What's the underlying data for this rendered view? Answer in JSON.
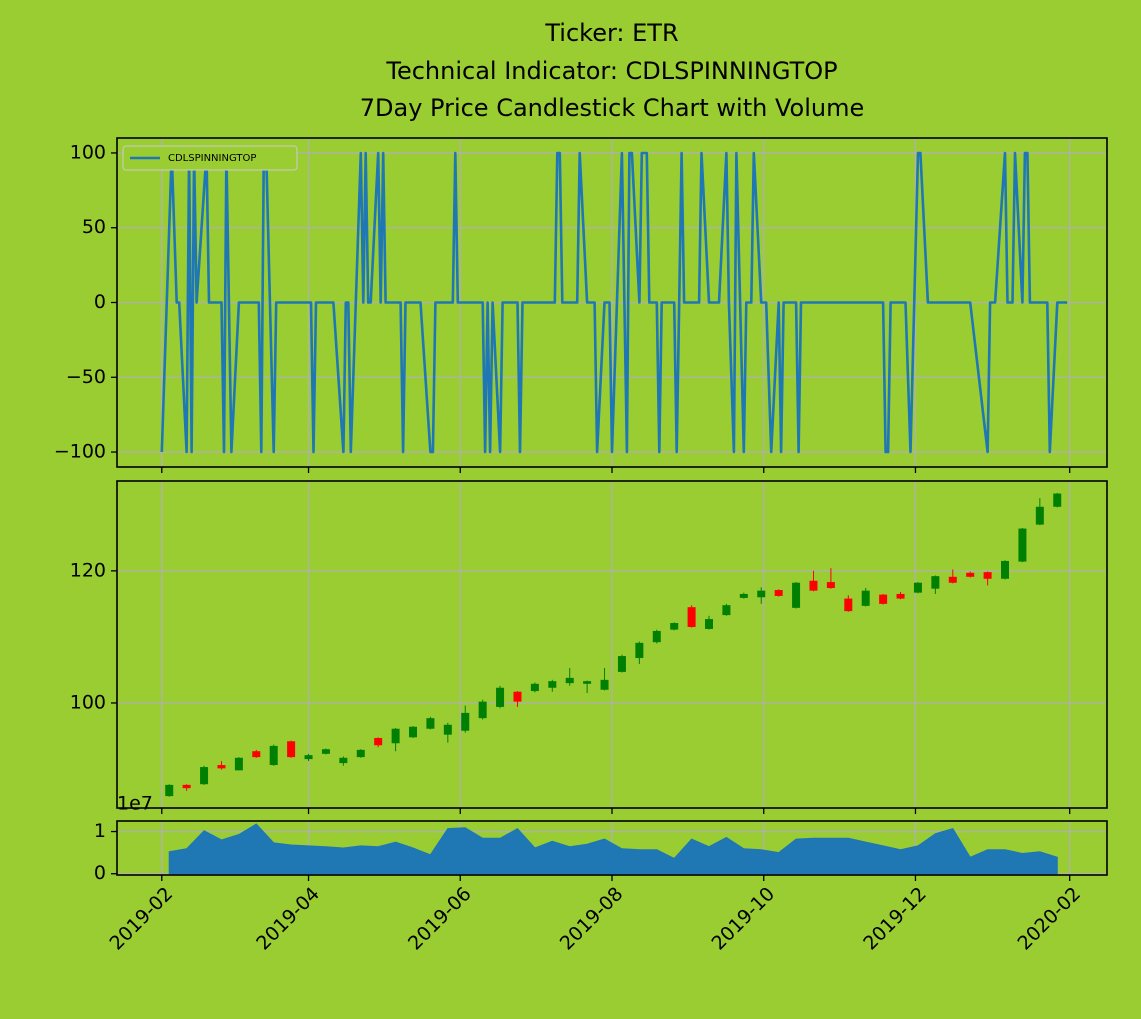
{
  "chart_data": [
    {
      "type": "line",
      "title": [
        "Ticker: ETR",
        "Technical Indicator: CDLSPINNINGTOP",
        "7Day Price Candlestick Chart with Volume"
      ],
      "legend": "upper left",
      "ylim": [
        -110,
        110
      ],
      "yticks": [
        {
          "value": -100,
          "label": "−100"
        },
        {
          "value": -50,
          "label": "−50"
        },
        0,
        50,
        100
      ],
      "grid": true,
      "x": [
        "2019-02-01",
        "2019-02-05",
        "2019-02-07",
        "2019-02-08",
        "2019-02-11",
        "2019-02-12",
        "2019-02-13",
        "2019-02-14",
        "2019-02-15",
        "2019-02-19",
        "2019-02-20",
        "2019-02-25",
        "2019-02-26",
        "2019-02-27",
        "2019-03-01",
        "2019-03-04",
        "2019-03-12",
        "2019-03-13",
        "2019-03-14",
        "2019-03-15",
        "2019-03-18",
        "2019-03-19",
        "2019-04-02",
        "2019-04-03",
        "2019-04-04",
        "2019-04-11",
        "2019-04-15",
        "2019-04-16",
        "2019-04-17",
        "2019-04-18",
        "2019-04-22",
        "2019-04-23",
        "2019-04-24",
        "2019-04-25",
        "2019-04-26",
        "2019-04-29",
        "2019-04-30",
        "2019-05-01",
        "2019-05-02",
        "2019-05-08",
        "2019-05-09",
        "2019-05-10",
        "2019-05-16",
        "2019-05-20",
        "2019-05-21",
        "2019-05-22",
        "2019-05-29",
        "2019-05-30",
        "2019-05-31",
        "2019-06-10",
        "2019-06-11",
        "2019-06-12",
        "2019-06-13",
        "2019-06-14",
        "2019-06-17",
        "2019-06-18",
        "2019-06-24",
        "2019-06-25",
        "2019-06-26",
        "2019-07-09",
        "2019-07-10",
        "2019-07-11",
        "2019-07-12",
        "2019-07-18",
        "2019-07-19",
        "2019-07-22",
        "2019-07-25",
        "2019-07-26",
        "2019-07-29",
        "2019-07-31",
        "2019-08-01",
        "2019-08-05",
        "2019-08-06",
        "2019-08-07",
        "2019-08-08",
        "2019-08-09",
        "2019-08-12",
        "2019-08-13",
        "2019-08-15",
        "2019-08-16",
        "2019-08-19",
        "2019-08-20",
        "2019-08-21",
        "2019-08-26",
        "2019-08-27",
        "2019-08-28",
        "2019-08-29",
        "2019-08-30",
        "2019-09-05",
        "2019-09-06",
        "2019-09-09",
        "2019-09-13",
        "2019-09-16",
        "2019-09-17",
        "2019-09-19",
        "2019-09-20",
        "2019-09-23",
        "2019-09-24",
        "2019-09-26",
        "2019-09-27",
        "2019-09-30",
        "2019-10-02",
        "2019-10-04",
        "2019-10-07",
        "2019-10-08",
        "2019-10-09",
        "2019-10-14",
        "2019-10-15",
        "2019-10-16",
        "2019-11-18",
        "2019-11-19",
        "2019-11-20",
        "2019-11-21",
        "2019-11-27",
        "2019-11-29",
        "2019-12-02",
        "2019-12-03",
        "2019-12-06",
        "2019-12-23",
        "2019-12-30",
        "2019-12-31",
        "2020-01-02",
        "2020-01-06",
        "2020-01-07",
        "2020-01-09",
        "2020-01-10",
        "2020-01-13",
        "2020-01-14",
        "2020-01-15",
        "2020-01-16",
        "2020-01-23",
        "2020-01-24",
        "2020-01-27",
        "2020-01-31"
      ],
      "series": [
        {
          "name": "CDLSPINNINGTOP",
          "color": "#1f77b4",
          "values": [
            -100,
            100,
            0,
            0,
            -100,
            100,
            -100,
            100,
            0,
            100,
            0,
            0,
            -100,
            100,
            -100,
            0,
            0,
            -100,
            100,
            100,
            -100,
            0,
            0,
            -100,
            0,
            0,
            -100,
            0,
            0,
            -100,
            100,
            0,
            100,
            0,
            0,
            100,
            0,
            100,
            0,
            0,
            -100,
            0,
            0,
            -100,
            -100,
            0,
            0,
            100,
            0,
            0,
            -100,
            0,
            -100,
            0,
            -100,
            0,
            0,
            -100,
            0,
            0,
            100,
            100,
            0,
            0,
            100,
            0,
            0,
            -100,
            0,
            0,
            -100,
            100,
            0,
            -100,
            100,
            100,
            0,
            100,
            100,
            0,
            0,
            -100,
            0,
            0,
            -100,
            0,
            100,
            0,
            0,
            100,
            0,
            0,
            100,
            0,
            -100,
            100,
            -100,
            0,
            0,
            100,
            0,
            0,
            -100,
            0,
            -100,
            0,
            0,
            -100,
            0,
            0,
            -100,
            -100,
            0,
            0,
            -100,
            100,
            100,
            0,
            0,
            -100,
            0,
            0,
            100,
            0,
            0,
            100,
            0,
            100,
            100,
            0,
            0,
            -100,
            0,
            0
          ]
        }
      ]
    },
    {
      "type": "candlestick",
      "ylim": [
        84.1,
        133.6
      ],
      "yticks": [
        100,
        120
      ],
      "grid": true,
      "up_color": "#008000",
      "down_color": "#ff0000",
      "x": [
        "2019-02-04",
        "2019-02-11",
        "2019-02-18",
        "2019-02-25",
        "2019-03-04",
        "2019-03-11",
        "2019-03-18",
        "2019-03-25",
        "2019-04-01",
        "2019-04-08",
        "2019-04-15",
        "2019-04-22",
        "2019-04-29",
        "2019-05-06",
        "2019-05-13",
        "2019-05-20",
        "2019-05-27",
        "2019-06-03",
        "2019-06-10",
        "2019-06-17",
        "2019-06-24",
        "2019-07-01",
        "2019-07-08",
        "2019-07-15",
        "2019-07-22",
        "2019-07-29",
        "2019-08-05",
        "2019-08-12",
        "2019-08-19",
        "2019-08-26",
        "2019-09-02",
        "2019-09-09",
        "2019-09-16",
        "2019-09-23",
        "2019-09-30",
        "2019-10-07",
        "2019-10-14",
        "2019-10-21",
        "2019-10-28",
        "2019-11-04",
        "2019-11-11",
        "2019-11-18",
        "2019-11-25",
        "2019-12-02",
        "2019-12-09",
        "2019-12-16",
        "2019-12-23",
        "2019-12-30",
        "2020-01-06",
        "2020-01-13",
        "2020-01-20",
        "2020-01-27"
      ],
      "open": [
        85.9,
        87.6,
        87.7,
        90.6,
        89.8,
        92.7,
        90.6,
        94.2,
        91.5,
        92.3,
        90.9,
        91.8,
        94.7,
        93.9,
        94.8,
        96.1,
        95.2,
        95.8,
        97.7,
        99.4,
        101.7,
        101.8,
        102.3,
        103.0,
        102.9,
        102.0,
        104.7,
        106.8,
        109.2,
        111.1,
        114.5,
        111.2,
        113.3,
        115.9,
        116.0,
        117.1,
        114.4,
        118.5,
        118.3,
        115.8,
        114.7,
        116.4,
        116.5,
        116.7,
        117.3,
        119.1,
        119.7,
        119.8,
        118.8,
        121.4,
        127.0,
        129.7
      ],
      "high": [
        87.7,
        87.7,
        90.5,
        91.2,
        91.8,
        92.9,
        93.7,
        94.3,
        92.3,
        93.1,
        91.9,
        93.0,
        94.8,
        96.2,
        96.5,
        97.9,
        97.0,
        99.6,
        100.5,
        102.6,
        101.8,
        103.1,
        103.5,
        105.3,
        103.4,
        105.3,
        107.3,
        109.3,
        111.1,
        112.2,
        114.8,
        113.2,
        115.0,
        116.7,
        117.5,
        117.2,
        118.3,
        120.0,
        120.4,
        116.3,
        117.4,
        116.5,
        116.8,
        118.3,
        119.3,
        120.2,
        119.9,
        119.9,
        121.6,
        126.5,
        131.0,
        131.8
      ],
      "low": [
        85.8,
        86.7,
        87.6,
        89.9,
        89.8,
        91.7,
        90.5,
        91.7,
        91.2,
        92.2,
        90.5,
        91.7,
        93.3,
        92.7,
        94.7,
        96.0,
        94.0,
        95.5,
        97.5,
        99.2,
        99.4,
        101.6,
        101.7,
        102.6,
        101.5,
        101.9,
        104.6,
        105.9,
        109.0,
        111.0,
        111.4,
        111.1,
        113.2,
        115.8,
        115.0,
        116.1,
        114.3,
        116.9,
        117.3,
        113.8,
        114.6,
        114.9,
        115.7,
        116.6,
        116.5,
        118.1,
        119.0,
        117.8,
        118.7,
        121.3,
        126.9,
        129.6
      ],
      "close": [
        87.6,
        87.1,
        90.3,
        90.1,
        91.7,
        91.8,
        93.5,
        91.8,
        92.1,
        93.0,
        91.7,
        92.9,
        93.6,
        96.1,
        96.4,
        97.7,
        96.7,
        98.5,
        100.2,
        102.3,
        100.2,
        102.9,
        103.3,
        103.8,
        103.3,
        103.5,
        107.1,
        109.1,
        110.9,
        112.1,
        111.5,
        112.7,
        114.8,
        116.5,
        117.0,
        116.2,
        118.2,
        117.0,
        117.4,
        113.9,
        117.0,
        115.0,
        115.8,
        118.2,
        119.2,
        118.2,
        119.1,
        118.8,
        121.5,
        126.4,
        129.7,
        131.7
      ]
    },
    {
      "type": "area",
      "yaxis_offset": "1e7",
      "ylim": [
        -0.03,
        1.25
      ],
      "yticks": [
        0,
        1
      ],
      "grid": true,
      "color": "#1f77b4",
      "xlim": [
        "2019-01-14",
        "2020-02-16"
      ],
      "xticks": [
        {
          "value": "2019-02-01",
          "label": "2019-02"
        },
        {
          "value": "2019-04-01",
          "label": "2019-04"
        },
        {
          "value": "2019-06-01",
          "label": "2019-06"
        },
        {
          "value": "2019-08-01",
          "label": "2019-08"
        },
        {
          "value": "2019-10-01",
          "label": "2019-10"
        },
        {
          "value": "2019-12-01",
          "label": "2019-12"
        },
        {
          "value": "2020-02-01",
          "label": "2020-02"
        }
      ],
      "x": [
        "2019-02-04",
        "2019-02-11",
        "2019-02-18",
        "2019-02-25",
        "2019-03-04",
        "2019-03-11",
        "2019-03-18",
        "2019-03-25",
        "2019-04-01",
        "2019-04-08",
        "2019-04-15",
        "2019-04-22",
        "2019-04-29",
        "2019-05-06",
        "2019-05-13",
        "2019-05-20",
        "2019-05-27",
        "2019-06-03",
        "2019-06-10",
        "2019-06-17",
        "2019-06-24",
        "2019-07-01",
        "2019-07-08",
        "2019-07-15",
        "2019-07-22",
        "2019-07-29",
        "2019-08-05",
        "2019-08-12",
        "2019-08-19",
        "2019-08-26",
        "2019-09-02",
        "2019-09-09",
        "2019-09-16",
        "2019-09-23",
        "2019-09-30",
        "2019-10-07",
        "2019-10-14",
        "2019-10-21",
        "2019-10-28",
        "2019-11-04",
        "2019-11-11",
        "2019-11-18",
        "2019-11-25",
        "2019-12-02",
        "2019-12-09",
        "2019-12-16",
        "2019-12-23",
        "2019-12-30",
        "2020-01-06",
        "2020-01-13",
        "2020-01-20",
        "2020-01-27"
      ],
      "values": [
        0.52,
        0.59,
        1.02,
        0.8,
        0.93,
        1.18,
        0.73,
        0.68,
        0.66,
        0.64,
        0.61,
        0.66,
        0.64,
        0.75,
        0.61,
        0.45,
        1.07,
        1.09,
        0.84,
        0.84,
        1.07,
        0.61,
        0.77,
        0.64,
        0.7,
        0.82,
        0.59,
        0.57,
        0.57,
        0.36,
        0.82,
        0.64,
        0.86,
        0.59,
        0.57,
        0.5,
        0.82,
        0.84,
        0.84,
        0.84,
        0.75,
        0.66,
        0.57,
        0.66,
        0.95,
        1.07,
        0.39,
        0.57,
        0.57,
        0.48,
        0.52,
        0.39
      ]
    }
  ]
}
